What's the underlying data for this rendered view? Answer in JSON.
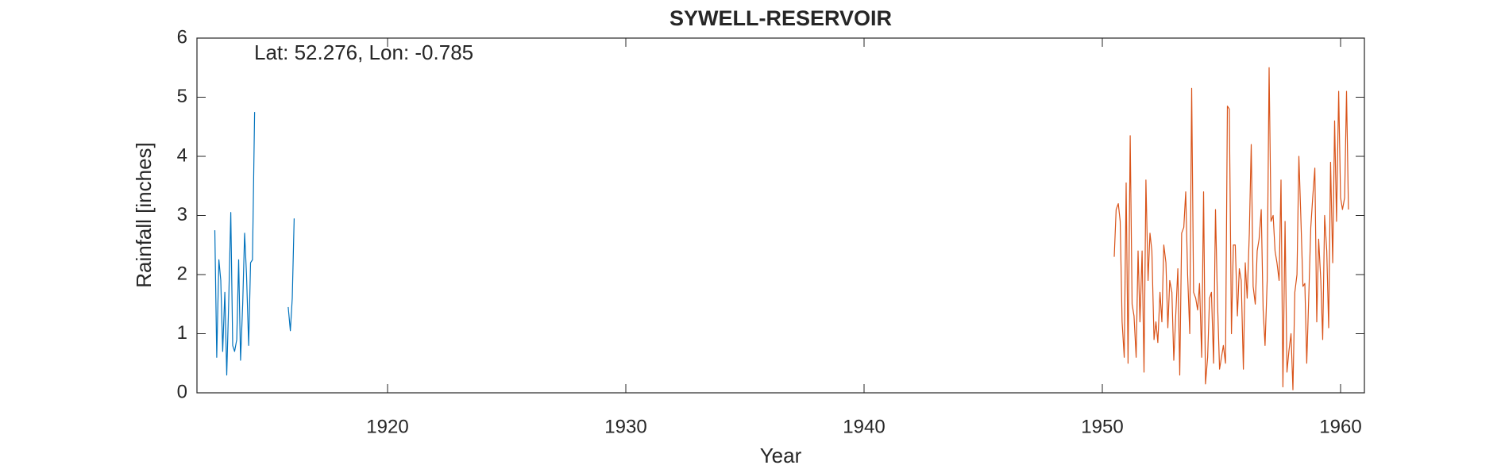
{
  "chart_data": {
    "type": "line",
    "title": "SYWELL-RESERVOIR",
    "annotation": "Lat: 52.276, Lon: -0.785",
    "x_label": "Year",
    "y_label": "Rainfall [inches]",
    "xlim": [
      1912,
      1961
    ],
    "xticks": [
      1920,
      1930,
      1940,
      1950,
      1960
    ],
    "ylim": [
      0,
      6
    ],
    "yticks": [
      0,
      1,
      2,
      3,
      4,
      5,
      6
    ],
    "grid": false,
    "series": [
      {
        "color": "#0072BD",
        "x": [
          1912.75,
          1912.83,
          1912.92,
          1913.0,
          1913.08,
          1913.17,
          1913.25,
          1913.33,
          1913.42,
          1913.5,
          1913.58,
          1913.67,
          1913.75,
          1913.83,
          1913.92,
          1914.0,
          1914.08,
          1914.17,
          1914.25,
          1914.33,
          1914.42,
          1914.5,
          1915.83,
          1915.92,
          1916.0,
          1916.08
        ],
        "values": [
          2.75,
          0.6,
          2.25,
          1.9,
          0.7,
          1.7,
          0.3,
          1.5,
          3.05,
          0.8,
          0.7,
          0.9,
          2.25,
          0.55,
          1.5,
          2.7,
          2.0,
          0.8,
          2.2,
          2.25,
          4.75,
          null,
          1.45,
          1.05,
          1.6,
          2.95
        ]
      },
      {
        "color": "#D95319",
        "x": [
          1950.5,
          1950.58,
          1950.67,
          1950.75,
          1950.83,
          1950.92,
          1951.0,
          1951.08,
          1951.17,
          1951.25,
          1951.33,
          1951.42,
          1951.5,
          1951.58,
          1951.67,
          1951.75,
          1951.83,
          1951.92,
          1952.0,
          1952.08,
          1952.17,
          1952.25,
          1952.33,
          1952.42,
          1952.5,
          1952.58,
          1952.67,
          1952.75,
          1952.83,
          1952.92,
          1953.0,
          1953.08,
          1953.17,
          1953.25,
          1953.33,
          1953.42,
          1953.5,
          1953.58,
          1953.67,
          1953.75,
          1953.83,
          1953.92,
          1954.0,
          1954.08,
          1954.17,
          1954.25,
          1954.33,
          1954.42,
          1954.5,
          1954.58,
          1954.67,
          1954.75,
          1954.83,
          1954.92,
          1955.0,
          1955.08,
          1955.17,
          1955.25,
          1955.33,
          1955.42,
          1955.5,
          1955.58,
          1955.67,
          1955.75,
          1955.83,
          1955.92,
          1956.0,
          1956.08,
          1956.17,
          1956.25,
          1956.33,
          1956.42,
          1956.5,
          1956.58,
          1956.67,
          1956.75,
          1956.83,
          1956.92,
          1957.0,
          1957.08,
          1957.17,
          1957.25,
          1957.33,
          1957.42,
          1957.5,
          1957.58,
          1957.67,
          1957.75,
          1957.83,
          1957.92,
          1958.0,
          1958.08,
          1958.17,
          1958.25,
          1958.33,
          1958.42,
          1958.5,
          1958.58,
          1958.67,
          1958.75,
          1958.83,
          1958.92,
          1959.0,
          1959.08,
          1959.17,
          1959.25,
          1959.33,
          1959.42,
          1959.5,
          1959.58,
          1959.67,
          1959.75,
          1959.83,
          1959.92,
          1960.0,
          1960.08,
          1960.17,
          1960.25,
          1960.33
        ],
        "values": [
          2.3,
          3.1,
          3.2,
          2.9,
          1.2,
          0.6,
          3.55,
          0.5,
          4.35,
          1.5,
          1.3,
          0.6,
          2.4,
          1.2,
          2.4,
          0.35,
          3.6,
          1.9,
          2.7,
          2.4,
          0.9,
          1.2,
          0.85,
          1.7,
          1.2,
          2.5,
          2.2,
          1.1,
          1.9,
          1.7,
          0.55,
          1.3,
          2.1,
          0.3,
          2.7,
          2.8,
          3.4,
          2.0,
          1.0,
          5.15,
          1.7,
          1.6,
          1.4,
          1.85,
          0.6,
          3.4,
          0.15,
          0.6,
          1.6,
          1.7,
          0.5,
          3.1,
          1.6,
          0.4,
          0.6,
          0.8,
          0.5,
          4.85,
          4.8,
          1.0,
          2.5,
          2.5,
          1.3,
          2.1,
          1.9,
          0.4,
          2.2,
          1.6,
          2.7,
          4.2,
          1.8,
          1.5,
          2.4,
          2.6,
          3.1,
          1.4,
          0.8,
          1.9,
          5.5,
          2.9,
          3.0,
          2.4,
          2.2,
          1.9,
          3.6,
          0.1,
          2.9,
          0.35,
          0.7,
          1.0,
          0.05,
          1.7,
          2.0,
          4.0,
          3.0,
          1.8,
          1.85,
          0.5,
          1.7,
          2.8,
          3.3,
          3.8,
          1.2,
          2.6,
          1.9,
          0.9,
          3.0,
          2.4,
          1.1,
          3.9,
          2.2,
          4.6,
          2.9,
          5.1,
          3.3,
          3.1,
          3.3,
          5.1,
          3.1
        ]
      }
    ]
  }
}
